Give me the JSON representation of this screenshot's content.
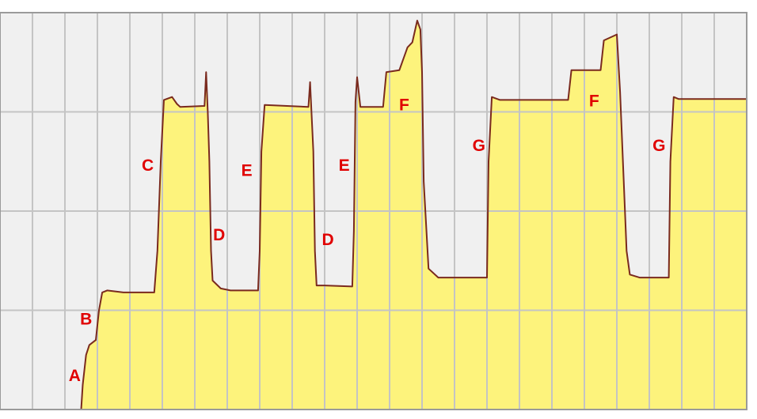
{
  "chart_data": {
    "type": "area",
    "title": "",
    "xlabel": "",
    "ylabel": "",
    "xlim": [
      0,
      23
    ],
    "ylim": [
      0,
      4
    ],
    "grid": true,
    "x_gridlines": 23,
    "y_gridlines": 4,
    "colors": {
      "plot_background": "#f0f0f0",
      "fill": "#fdf37c",
      "line": "#7a2a1e",
      "grid": "#c4c4c4",
      "border": "#9a9a9a",
      "annotation": "#e00000"
    },
    "series": [
      {
        "points": [
          [
            0.0,
            0.0
          ],
          [
            2.5,
            0.0
          ],
          [
            2.55,
            0.25
          ],
          [
            2.65,
            0.55
          ],
          [
            2.75,
            0.65
          ],
          [
            2.95,
            0.7
          ],
          [
            3.05,
            1.0
          ],
          [
            3.15,
            1.18
          ],
          [
            3.3,
            1.2
          ],
          [
            3.8,
            1.18
          ],
          [
            4.75,
            1.18
          ],
          [
            4.85,
            1.6
          ],
          [
            4.95,
            2.5
          ],
          [
            5.05,
            3.12
          ],
          [
            5.3,
            3.15
          ],
          [
            5.45,
            3.08
          ],
          [
            5.55,
            3.05
          ],
          [
            6.3,
            3.06
          ],
          [
            6.35,
            3.4
          ],
          [
            6.4,
            3.0
          ],
          [
            6.45,
            2.5
          ],
          [
            6.5,
            1.6
          ],
          [
            6.55,
            1.3
          ],
          [
            6.8,
            1.22
          ],
          [
            7.1,
            1.2
          ],
          [
            7.95,
            1.2
          ],
          [
            8.0,
            1.6
          ],
          [
            8.05,
            2.6
          ],
          [
            8.15,
            3.07
          ],
          [
            9.5,
            3.05
          ],
          [
            9.55,
            3.3
          ],
          [
            9.65,
            2.6
          ],
          [
            9.7,
            1.6
          ],
          [
            9.75,
            1.25
          ],
          [
            10.0,
            1.25
          ],
          [
            10.85,
            1.24
          ],
          [
            10.9,
            1.8
          ],
          [
            10.95,
            3.1
          ],
          [
            11.0,
            3.35
          ],
          [
            11.1,
            3.05
          ],
          [
            11.8,
            3.05
          ],
          [
            11.9,
            3.4
          ],
          [
            12.3,
            3.42
          ],
          [
            12.55,
            3.65
          ],
          [
            12.7,
            3.7
          ],
          [
            12.85,
            3.92
          ],
          [
            12.95,
            3.83
          ],
          [
            13.0,
            3.4
          ],
          [
            13.05,
            2.3
          ],
          [
            13.2,
            1.42
          ],
          [
            13.5,
            1.33
          ],
          [
            15.0,
            1.33
          ],
          [
            15.05,
            2.5
          ],
          [
            15.15,
            3.15
          ],
          [
            15.4,
            3.12
          ],
          [
            17.5,
            3.12
          ],
          [
            17.6,
            3.42
          ],
          [
            18.5,
            3.42
          ],
          [
            18.6,
            3.72
          ],
          [
            19.0,
            3.78
          ],
          [
            19.1,
            3.2
          ],
          [
            19.2,
            2.4
          ],
          [
            19.3,
            1.6
          ],
          [
            19.4,
            1.36
          ],
          [
            19.7,
            1.33
          ],
          [
            20.6,
            1.33
          ],
          [
            20.65,
            2.5
          ],
          [
            20.75,
            3.15
          ],
          [
            20.9,
            3.13
          ],
          [
            23.0,
            3.13
          ]
        ]
      }
    ],
    "annotations": [
      {
        "text": "A",
        "x": 2.3,
        "y": 0.33
      },
      {
        "text": "B",
        "x": 2.65,
        "y": 0.9
      },
      {
        "text": "C",
        "x": 4.55,
        "y": 2.45
      },
      {
        "text": "D",
        "x": 6.75,
        "y": 1.75
      },
      {
        "text": "E",
        "x": 7.6,
        "y": 2.4
      },
      {
        "text": "D",
        "x": 10.1,
        "y": 1.7
      },
      {
        "text": "E",
        "x": 10.6,
        "y": 2.45
      },
      {
        "text": "F",
        "x": 12.45,
        "y": 3.06
      },
      {
        "text": "G",
        "x": 14.75,
        "y": 2.65
      },
      {
        "text": "F",
        "x": 18.3,
        "y": 3.1
      },
      {
        "text": "G",
        "x": 20.3,
        "y": 2.65
      }
    ]
  }
}
